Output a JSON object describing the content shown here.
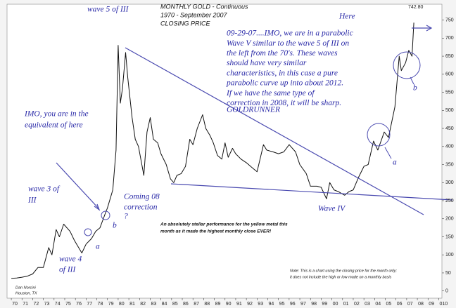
{
  "chart_data": {
    "type": "line",
    "title": "MONTHLY GOLD - Continuous",
    "subtitle": [
      "1970 - September 2007",
      "CLOSING PRICE"
    ],
    "color": "#111111",
    "grid": false,
    "x": [
      1970.0,
      1970.5,
      1971.0,
      1971.5,
      1972.0,
      1972.5,
      1973.0,
      1973.5,
      1973.8,
      1974.2,
      1974.5,
      1974.9,
      1975.5,
      1975.9,
      1976.6,
      1977.0,
      1977.5,
      1977.9,
      1978.3,
      1978.8,
      1979.0,
      1979.5,
      1979.8,
      1980.0,
      1980.2,
      1980.4,
      1980.7,
      1980.9,
      1981.3,
      1981.6,
      1981.9,
      1982.4,
      1982.7,
      1983.0,
      1983.3,
      1983.7,
      1984.0,
      1984.5,
      1984.9,
      1985.2,
      1985.5,
      1985.9,
      1986.3,
      1986.7,
      1987.0,
      1987.4,
      1987.9,
      1988.2,
      1988.6,
      1988.9,
      1989.3,
      1989.7,
      1990.0,
      1990.3,
      1990.7,
      1991.0,
      1991.5,
      1992.0,
      1992.6,
      1993.0,
      1993.6,
      1993.9,
      1994.5,
      1995.0,
      1995.5,
      1996.0,
      1996.6,
      1997.0,
      1997.6,
      1998.0,
      1998.6,
      1999.0,
      1999.5,
      1999.8,
      2000.2,
      2000.6,
      2001.2,
      2001.6,
      2002.0,
      2002.5,
      2003.0,
      2003.4,
      2003.9,
      2004.3,
      2004.9,
      2005.3,
      2005.9,
      2006.3,
      2006.5,
      2006.9,
      2007.2,
      2007.5,
      2007.67
    ],
    "values": [
      35,
      36,
      38,
      41,
      47,
      65,
      65,
      120,
      100,
      170,
      150,
      185,
      165,
      140,
      105,
      130,
      145,
      165,
      175,
      215,
      230,
      280,
      390,
      680,
      520,
      560,
      660,
      590,
      480,
      420,
      400,
      320,
      440,
      480,
      420,
      410,
      380,
      350,
      310,
      300,
      320,
      325,
      345,
      420,
      405,
      450,
      488,
      450,
      430,
      410,
      375,
      365,
      410,
      370,
      395,
      380,
      365,
      355,
      340,
      330,
      405,
      390,
      385,
      380,
      385,
      405,
      385,
      350,
      325,
      290,
      290,
      287,
      255,
      300,
      280,
      275,
      265,
      275,
      280,
      315,
      345,
      350,
      415,
      390,
      440,
      425,
      510,
      650,
      610,
      632,
      666,
      650,
      742.8
    ],
    "xlim": [
      1969.6,
      2010.3
    ],
    "ylim": [
      -20,
      790
    ],
    "yticks": [
      0,
      50,
      100,
      150,
      200,
      250,
      300,
      350,
      400,
      450,
      500,
      550,
      600,
      650,
      700,
      750
    ],
    "xticks": [
      {
        "value": 1970,
        "label": "70"
      },
      {
        "value": 1971,
        "label": "71"
      },
      {
        "value": 1972,
        "label": "72"
      },
      {
        "value": 1973,
        "label": "73"
      },
      {
        "value": 1974,
        "label": "74"
      },
      {
        "value": 1975,
        "label": "75"
      },
      {
        "value": 1976,
        "label": "76"
      },
      {
        "value": 1977,
        "label": "77"
      },
      {
        "value": 1978,
        "label": "78"
      },
      {
        "value": 1979,
        "label": "79"
      },
      {
        "value": 1980,
        "label": "80"
      },
      {
        "value": 1981,
        "label": "81"
      },
      {
        "value": 1982,
        "label": "82"
      },
      {
        "value": 1983,
        "label": "83"
      },
      {
        "value": 1984,
        "label": "84"
      },
      {
        "value": 1985,
        "label": "85"
      },
      {
        "value": 1986,
        "label": "86"
      },
      {
        "value": 1987,
        "label": "87"
      },
      {
        "value": 1988,
        "label": "88"
      },
      {
        "value": 1989,
        "label": "89"
      },
      {
        "value": 1990,
        "label": "90"
      },
      {
        "value": 1991,
        "label": "91"
      },
      {
        "value": 1992,
        "label": "92"
      },
      {
        "value": 1993,
        "label": "93"
      },
      {
        "value": 1994,
        "label": "94"
      },
      {
        "value": 1995,
        "label": "95"
      },
      {
        "value": 1996,
        "label": "96"
      },
      {
        "value": 1997,
        "label": "97"
      },
      {
        "value": 1998,
        "label": "98"
      },
      {
        "value": 1999,
        "label": "99"
      },
      {
        "value": 2000,
        "label": "00"
      },
      {
        "value": 2001,
        "label": "01"
      },
      {
        "value": 2002,
        "label": "02"
      },
      {
        "value": 2003,
        "label": "03"
      },
      {
        "value": 2004,
        "label": "04"
      },
      {
        "value": 2005,
        "label": "05"
      },
      {
        "value": 2006,
        "label": "06"
      },
      {
        "value": 2007,
        "label": "07"
      },
      {
        "value": 2008,
        "label": "08"
      },
      {
        "value": 2009,
        "label": "09"
      },
      {
        "value": 2010,
        "label": "010"
      }
    ],
    "annotations": {
      "here": "Here",
      "last_close": "742.80",
      "wave5": "wave 5 of III",
      "comment": [
        "09-29-07....IMO, we are in a parabolic",
        "Wave V similar to the wave 5 of III on",
        "the left from the 70's.  These waves",
        "should have very similar",
        "characteristics, in this case a pure",
        "parabolic curve up into about 2012.",
        "If we have the same type of",
        "correction in 2008, it will be sharp."
      ],
      "goldrunner": "GOLDRUNNER",
      "imo": [
        "IMO, you are in the",
        "equivalent of here"
      ],
      "wave3": [
        "wave 3 of",
        "III"
      ],
      "coming": [
        "Coming 08",
        "correction",
        "?"
      ],
      "b_left": "b",
      "a_left": "a",
      "wave4": [
        "wave 4",
        "of III"
      ],
      "wave_iv": "Wave IV",
      "stellar": [
        "An absolutely stellar performance for the yellow metal this",
        "month as it made the highest monthly close EVER!"
      ],
      "note": [
        "Note: This is a chart using the closing price for the month only;",
        "it does not include the high or low made on a monthly basis"
      ],
      "author": [
        "Dan Norcini",
        "Houston, TX"
      ],
      "a_right": "a",
      "b_right": "b"
    }
  }
}
